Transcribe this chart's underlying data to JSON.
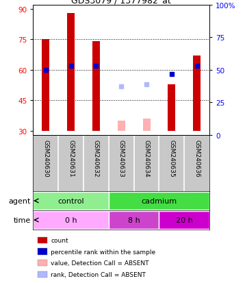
{
  "title": "GDS3079 / 1377982_at",
  "samples": [
    "GSM240630",
    "GSM240631",
    "GSM240632",
    "GSM240633",
    "GSM240634",
    "GSM240635",
    "GSM240636"
  ],
  "count_values": [
    75,
    88,
    74,
    null,
    null,
    53,
    67
  ],
  "count_bottom": [
    30,
    30,
    30,
    null,
    null,
    30,
    30
  ],
  "rank_values": [
    60,
    62,
    62,
    null,
    null,
    58,
    62
  ],
  "absent_value_values": [
    null,
    null,
    null,
    35,
    36,
    null,
    null
  ],
  "absent_value_bottom": [
    null,
    null,
    null,
    30,
    30,
    null,
    null
  ],
  "absent_rank_values": [
    null,
    null,
    null,
    52,
    53,
    null,
    null
  ],
  "ylim_left": [
    28,
    92
  ],
  "ylim_right": [
    0,
    100
  ],
  "yticks_left": [
    30,
    45,
    60,
    75,
    90
  ],
  "yticks_right": [
    0,
    25,
    50,
    75,
    100
  ],
  "ytick_labels_right": [
    "0",
    "25",
    "50",
    "75",
    "100%"
  ],
  "hlines": [
    45,
    60,
    75
  ],
  "bar_color": "#cc0000",
  "rank_color": "#0000cc",
  "absent_val_color": "#ffb0b0",
  "absent_rank_color": "#b0b8ff",
  "agent_labels": [
    "control",
    "cadmium"
  ],
  "agent_colors": [
    "#90ee90",
    "#44dd44"
  ],
  "time_labels": [
    "0 h",
    "8 h",
    "20 h"
  ],
  "time_colors": [
    "#ffaaff",
    "#cc44cc",
    "#cc00cc"
  ],
  "legend_items": [
    {
      "label": "count",
      "color": "#cc0000"
    },
    {
      "label": "percentile rank within the sample",
      "color": "#0000cc"
    },
    {
      "label": "value, Detection Call = ABSENT",
      "color": "#ffb0b0"
    },
    {
      "label": "rank, Detection Call = ABSENT",
      "color": "#b0b8ff"
    }
  ],
  "bar_width": 0.3,
  "n_samples": 7
}
